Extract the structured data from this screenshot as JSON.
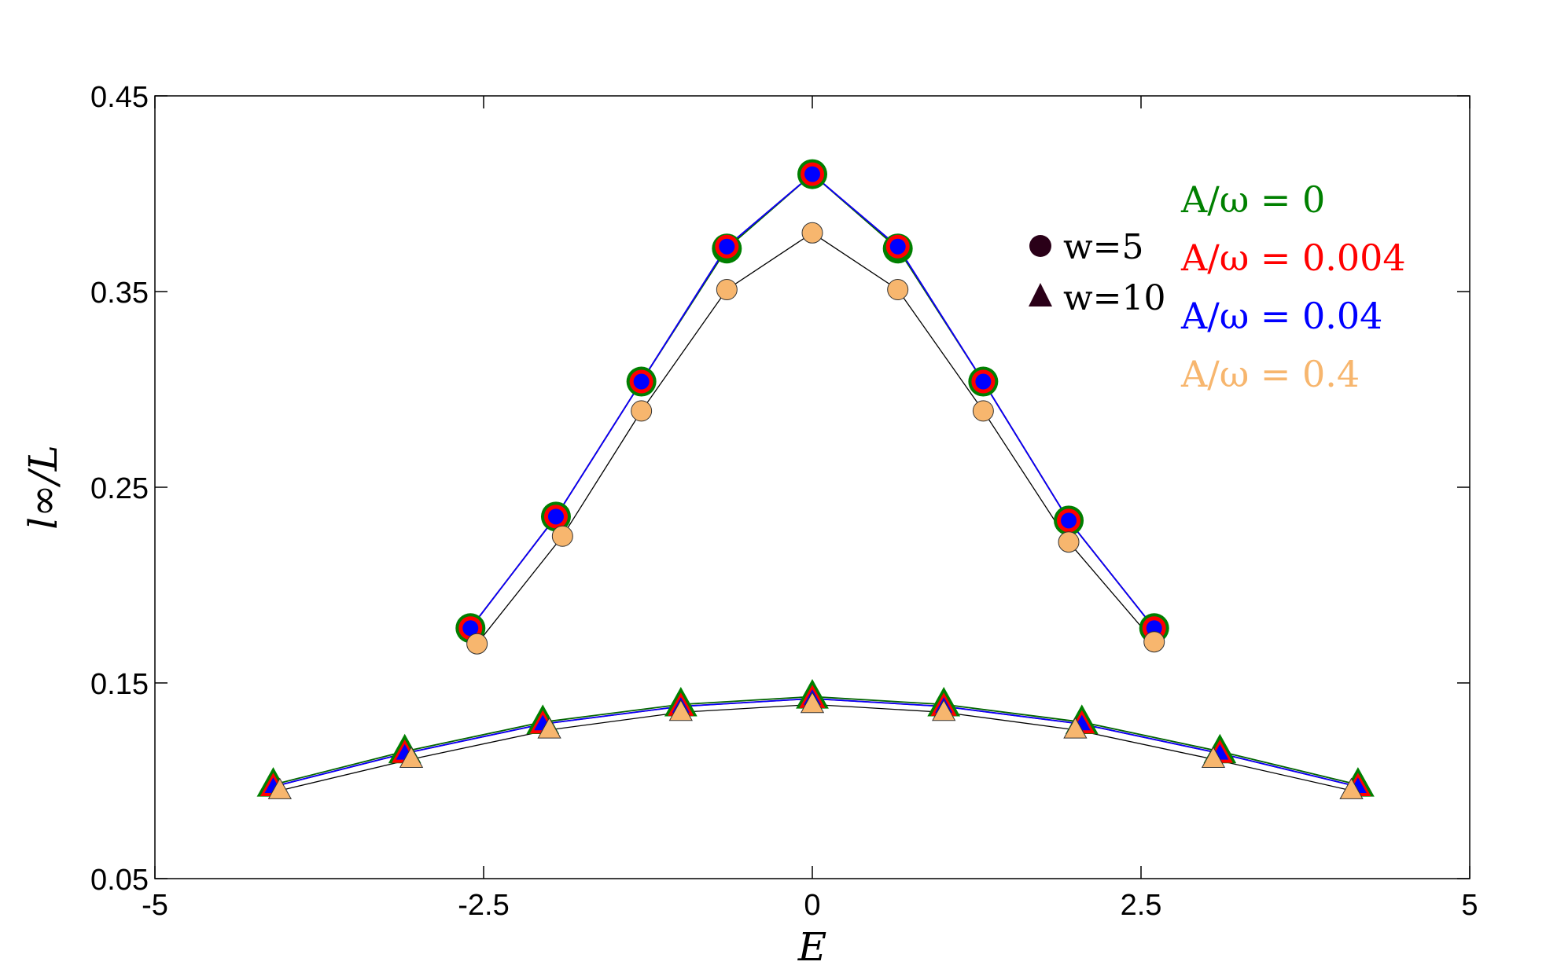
{
  "chart_data": {
    "type": "line",
    "xlabel": "E",
    "ylabel": "l∞/L",
    "xlim": [
      -5,
      5
    ],
    "ylim": [
      0.05,
      0.45
    ],
    "x_ticks": [
      "-5",
      "-2.5",
      "0",
      "2.5",
      "5"
    ],
    "y_ticks": [
      "0.05",
      "0.15",
      "0.25",
      "0.35",
      "0.45"
    ],
    "grid": false,
    "marker_legend": [
      {
        "marker": "circle",
        "label": "w=5"
      },
      {
        "marker": "triangle",
        "label": "w=10"
      }
    ],
    "color_legend": [
      {
        "label": "A/ω = 0",
        "color": "#008000"
      },
      {
        "label": "A/ω = 0.004",
        "color": "#ff0000"
      },
      {
        "label": "A/ω = 0.04",
        "color": "#0000ff"
      },
      {
        "label": "A/ω = 0.4",
        "color": "#f7b66e"
      }
    ],
    "series": [
      {
        "marker": "circle",
        "color": "#008000",
        "x": [
          -2.6,
          -1.95,
          -1.3,
          -0.65,
          0,
          0.65,
          1.3,
          1.95,
          2.6
        ],
        "y": [
          0.178,
          0.235,
          0.304,
          0.372,
          0.41,
          0.372,
          0.304,
          0.233,
          0.178
        ]
      },
      {
        "marker": "circle",
        "color": "#ff0000",
        "x": [
          -2.6,
          -1.95,
          -1.3,
          -0.65,
          0,
          0.65,
          1.3,
          1.95,
          2.6
        ],
        "y": [
          0.178,
          0.235,
          0.304,
          0.373,
          0.41,
          0.373,
          0.304,
          0.233,
          0.178
        ]
      },
      {
        "marker": "circle",
        "color": "#0000ff",
        "x": [
          -2.6,
          -1.95,
          -1.3,
          -0.65,
          0,
          0.65,
          1.3,
          1.95,
          2.6
        ],
        "y": [
          0.178,
          0.235,
          0.304,
          0.373,
          0.41,
          0.373,
          0.304,
          0.233,
          0.178
        ]
      },
      {
        "marker": "circle",
        "color": "#f7b66e",
        "x": [
          -2.55,
          -1.9,
          -1.3,
          -0.65,
          0,
          0.65,
          1.3,
          1.95,
          2.6
        ],
        "y": [
          0.17,
          0.225,
          0.289,
          0.351,
          0.38,
          0.351,
          0.289,
          0.222,
          0.171
        ]
      },
      {
        "marker": "triangle",
        "color": "#008000",
        "x": [
          -4.1,
          -3.1,
          -2.05,
          -1.0,
          0,
          1.0,
          2.05,
          3.1,
          4.15
        ],
        "y": [
          0.098,
          0.115,
          0.13,
          0.139,
          0.143,
          0.139,
          0.13,
          0.115,
          0.098
        ]
      },
      {
        "marker": "triangle",
        "color": "#ff0000",
        "x": [
          -4.1,
          -3.1,
          -2.05,
          -1.0,
          0,
          1.0,
          2.05,
          3.1,
          4.15
        ],
        "y": [
          0.097,
          0.114,
          0.129,
          0.138,
          0.142,
          0.138,
          0.129,
          0.114,
          0.097
        ]
      },
      {
        "marker": "triangle",
        "color": "#0000ff",
        "x": [
          -4.1,
          -3.1,
          -2.05,
          -1.0,
          0,
          1.0,
          2.05,
          3.1,
          4.15
        ],
        "y": [
          0.097,
          0.114,
          0.129,
          0.138,
          0.142,
          0.138,
          0.129,
          0.114,
          0.097
        ]
      },
      {
        "marker": "triangle",
        "color": "#f7b66e",
        "x": [
          -4.05,
          -3.05,
          -2.0,
          -1.0,
          0,
          1.0,
          2.0,
          3.05,
          4.1
        ],
        "y": [
          0.095,
          0.111,
          0.126,
          0.135,
          0.139,
          0.135,
          0.126,
          0.111,
          0.095
        ]
      }
    ]
  }
}
